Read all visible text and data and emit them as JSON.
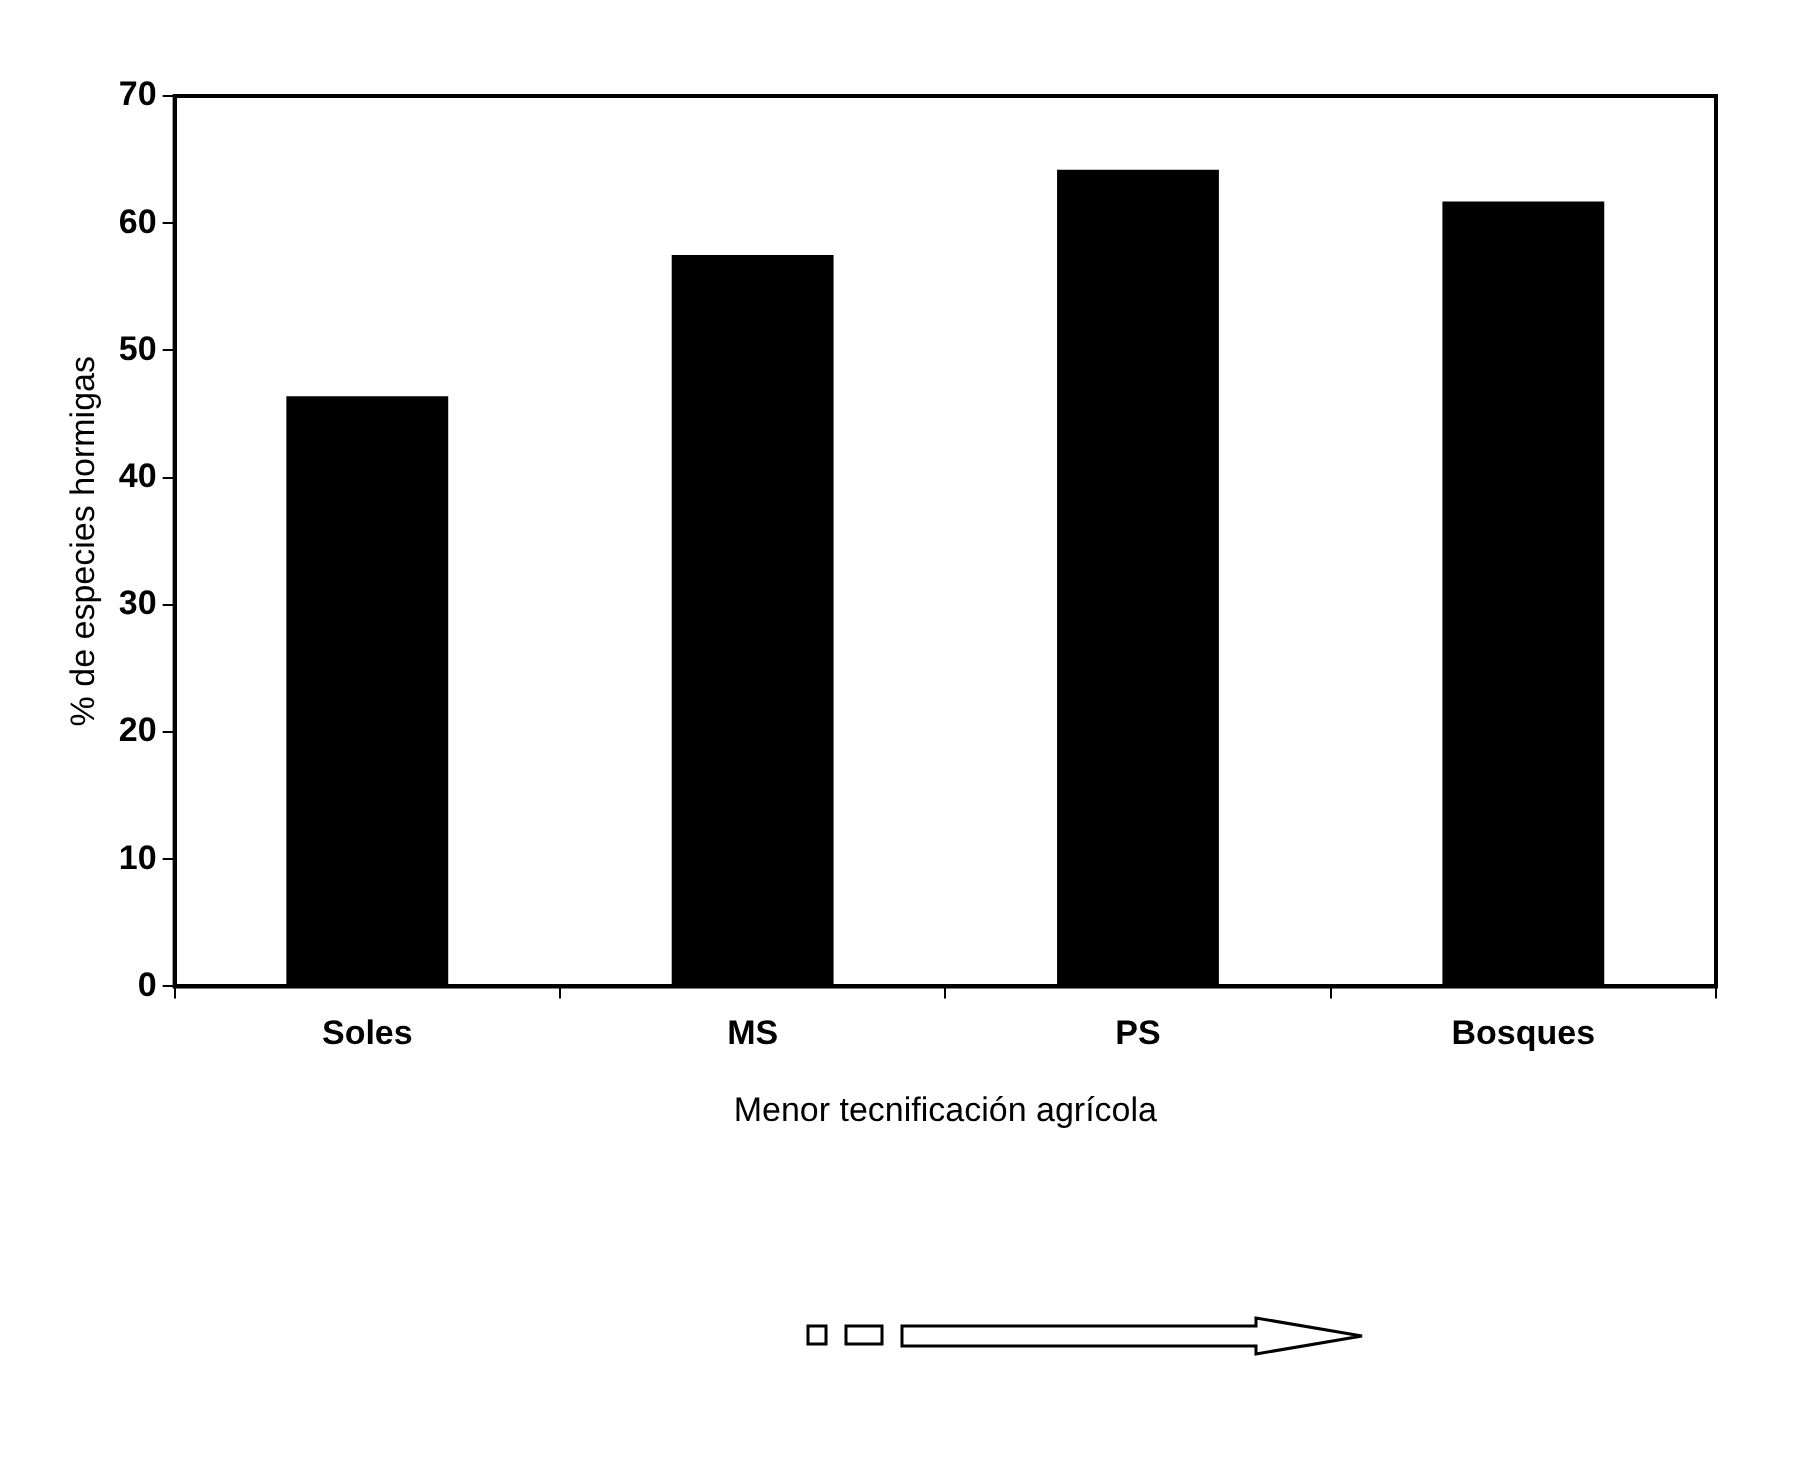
{
  "chart_data": {
    "type": "bar",
    "xlabel": "Menor tecnificación agrícola",
    "ylabel": "% de especies hormigas",
    "categories": [
      "Soles",
      "MS",
      "PS",
      "Bosques"
    ],
    "values": [
      46.4,
      57.5,
      64.2,
      61.7
    ],
    "color": "#000000",
    "ylim": [
      0,
      70
    ],
    "yticks": [
      0,
      10,
      20,
      30,
      40,
      50,
      60,
      70
    ],
    "grid": false,
    "legend": false
  }
}
